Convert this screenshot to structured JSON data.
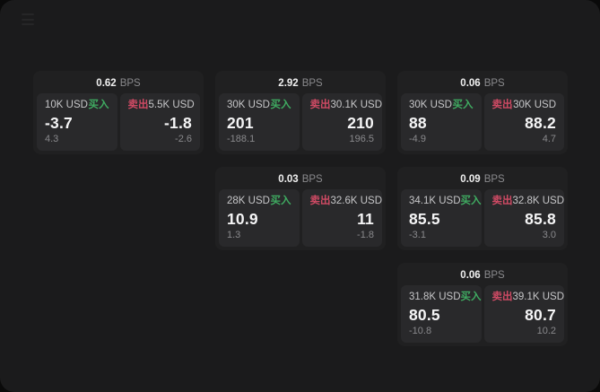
{
  "page": {
    "background": "#1b1b1c",
    "outer_background": "#0a0a0a"
  },
  "labels": {
    "bps_unit": "BPS",
    "buy": "买入",
    "sell": "卖出"
  },
  "colors": {
    "buy_green": "#3fab61",
    "sell_red": "#cf4a64",
    "card_bg": "#202021",
    "subpanel_bg": "#29292b"
  },
  "cards": [
    {
      "row": 1,
      "col": 1,
      "bps": "0.62",
      "buy": {
        "amount": "10K USD",
        "value": "-3.7",
        "sub": "4.3"
      },
      "sell": {
        "amount": "5.5K USD",
        "value": "-1.8",
        "sub": "-2.6"
      }
    },
    {
      "row": 1,
      "col": 2,
      "bps": "2.92",
      "buy": {
        "amount": "30K USD",
        "value": "201",
        "sub": "-188.1"
      },
      "sell": {
        "amount": "30.1K USD",
        "value": "210",
        "sub": "196.5"
      }
    },
    {
      "row": 1,
      "col": 3,
      "bps": "0.06",
      "buy": {
        "amount": "30K USD",
        "value": "88",
        "sub": "-4.9"
      },
      "sell": {
        "amount": "30K USD",
        "value": "88.2",
        "sub": "4.7"
      }
    },
    {
      "row": 2,
      "col": 2,
      "bps": "0.03",
      "buy": {
        "amount": "28K USD",
        "value": "10.9",
        "sub": "1.3"
      },
      "sell": {
        "amount": "32.6K USD",
        "value": "11",
        "sub": "-1.8"
      }
    },
    {
      "row": 2,
      "col": 3,
      "bps": "0.09",
      "buy": {
        "amount": "34.1K USD",
        "value": "85.5",
        "sub": "-3.1"
      },
      "sell": {
        "amount": "32.8K USD",
        "value": "85.8",
        "sub": "3.0"
      }
    },
    {
      "row": 3,
      "col": 3,
      "bps": "0.06",
      "buy": {
        "amount": "31.8K USD",
        "value": "80.5",
        "sub": "-10.8"
      },
      "sell": {
        "amount": "39.1K USD",
        "value": "80.7",
        "sub": "10.2"
      }
    }
  ]
}
